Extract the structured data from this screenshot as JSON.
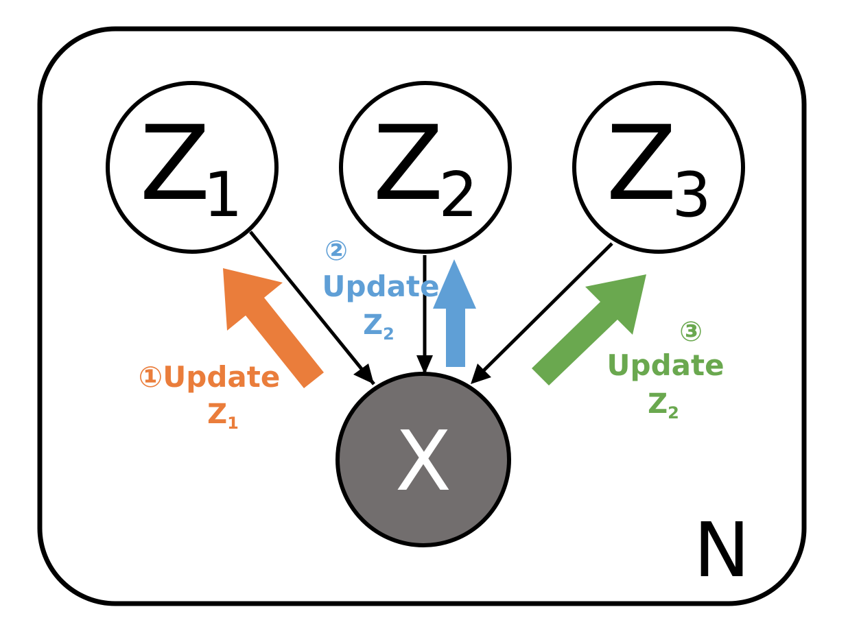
{
  "plate": {
    "label": "N"
  },
  "latent_nodes": [
    {
      "id": "z1",
      "symbol": "Z",
      "subscript": "1"
    },
    {
      "id": "z2",
      "symbol": "Z",
      "subscript": "2"
    },
    {
      "id": "z3",
      "symbol": "Z",
      "subscript": "3"
    }
  ],
  "observed_node": {
    "symbol": "X",
    "fill": "#726e6e",
    "text_color": "#ffffff"
  },
  "steps": [
    {
      "marker": "①",
      "line1": "Update",
      "var": "Z",
      "sub": "1",
      "color": "#ea7d3b"
    },
    {
      "marker": "②",
      "line1": "Update",
      "var": "Z",
      "sub": "2",
      "color": "#5f9fd6"
    },
    {
      "marker": "③",
      "line1": "Update",
      "var": "Z",
      "sub": "2",
      "color": "#6aa84f"
    }
  ]
}
